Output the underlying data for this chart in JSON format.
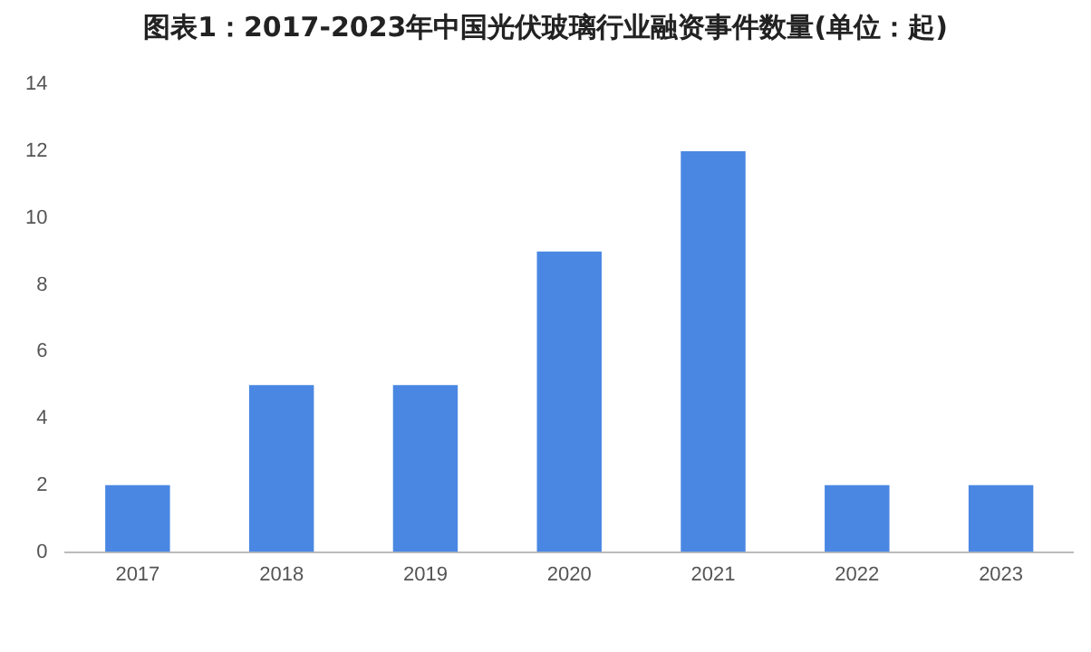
{
  "chart_data": {
    "type": "bar",
    "title": "图表1：2017-2023年中国光伏玻璃行业融资事件数量(单位：起)",
    "categories": [
      "2017",
      "2018",
      "2019",
      "2020",
      "2021",
      "2022",
      "2023"
    ],
    "values": [
      2,
      5,
      5,
      9,
      12,
      2,
      2
    ],
    "color": "#4a87e3",
    "ylim": [
      0,
      14
    ],
    "yticks": [
      0,
      2,
      4,
      6,
      8,
      10,
      12,
      14
    ],
    "grid": false,
    "legend": false
  }
}
